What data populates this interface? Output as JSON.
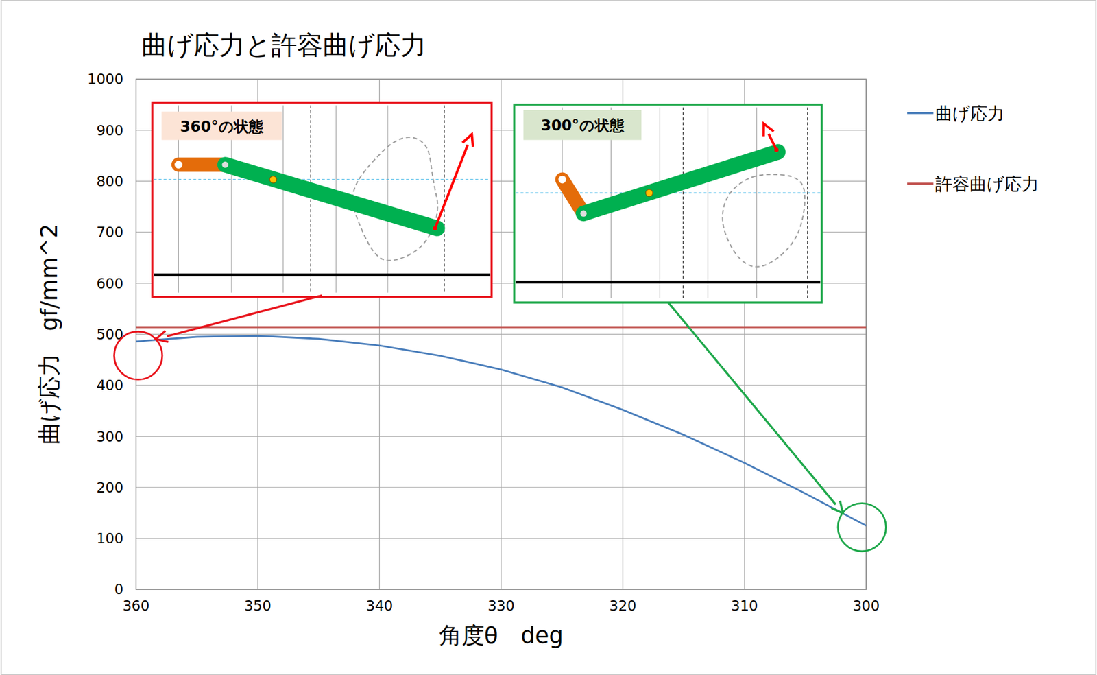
{
  "chart_data": {
    "type": "line",
    "title": "曲げ応力と許容曲げ応力",
    "x_label": "角度θ　deg",
    "y_label": "曲げ応力　gf/mm^2",
    "x": [
      360,
      355,
      350,
      345,
      340,
      335,
      330,
      325,
      320,
      315,
      310,
      305,
      300
    ],
    "series": [
      {
        "name": "曲げ応力",
        "color": "#4a7ebb",
        "values": [
          486,
          495,
          497,
          491,
          478,
          458,
          431,
          396,
          352,
          303,
          248,
          188,
          125
        ]
      },
      {
        "name": "許容曲げ応力",
        "color": "#c0504d",
        "values": [
          514,
          514,
          514,
          514,
          514,
          514,
          514,
          514,
          514,
          514,
          514,
          514,
          514
        ]
      }
    ],
    "xlim": [
      360,
      300
    ],
    "xticks": [
      360,
      350,
      340,
      330,
      320,
      310,
      300
    ],
    "ylim": [
      0,
      1000
    ],
    "yticks": [
      0,
      100,
      200,
      300,
      400,
      500,
      600,
      700,
      800,
      900,
      1000
    ],
    "grid": true,
    "legend": "right",
    "annotations": [
      "360°の状態",
      "300°の状態"
    ]
  }
}
